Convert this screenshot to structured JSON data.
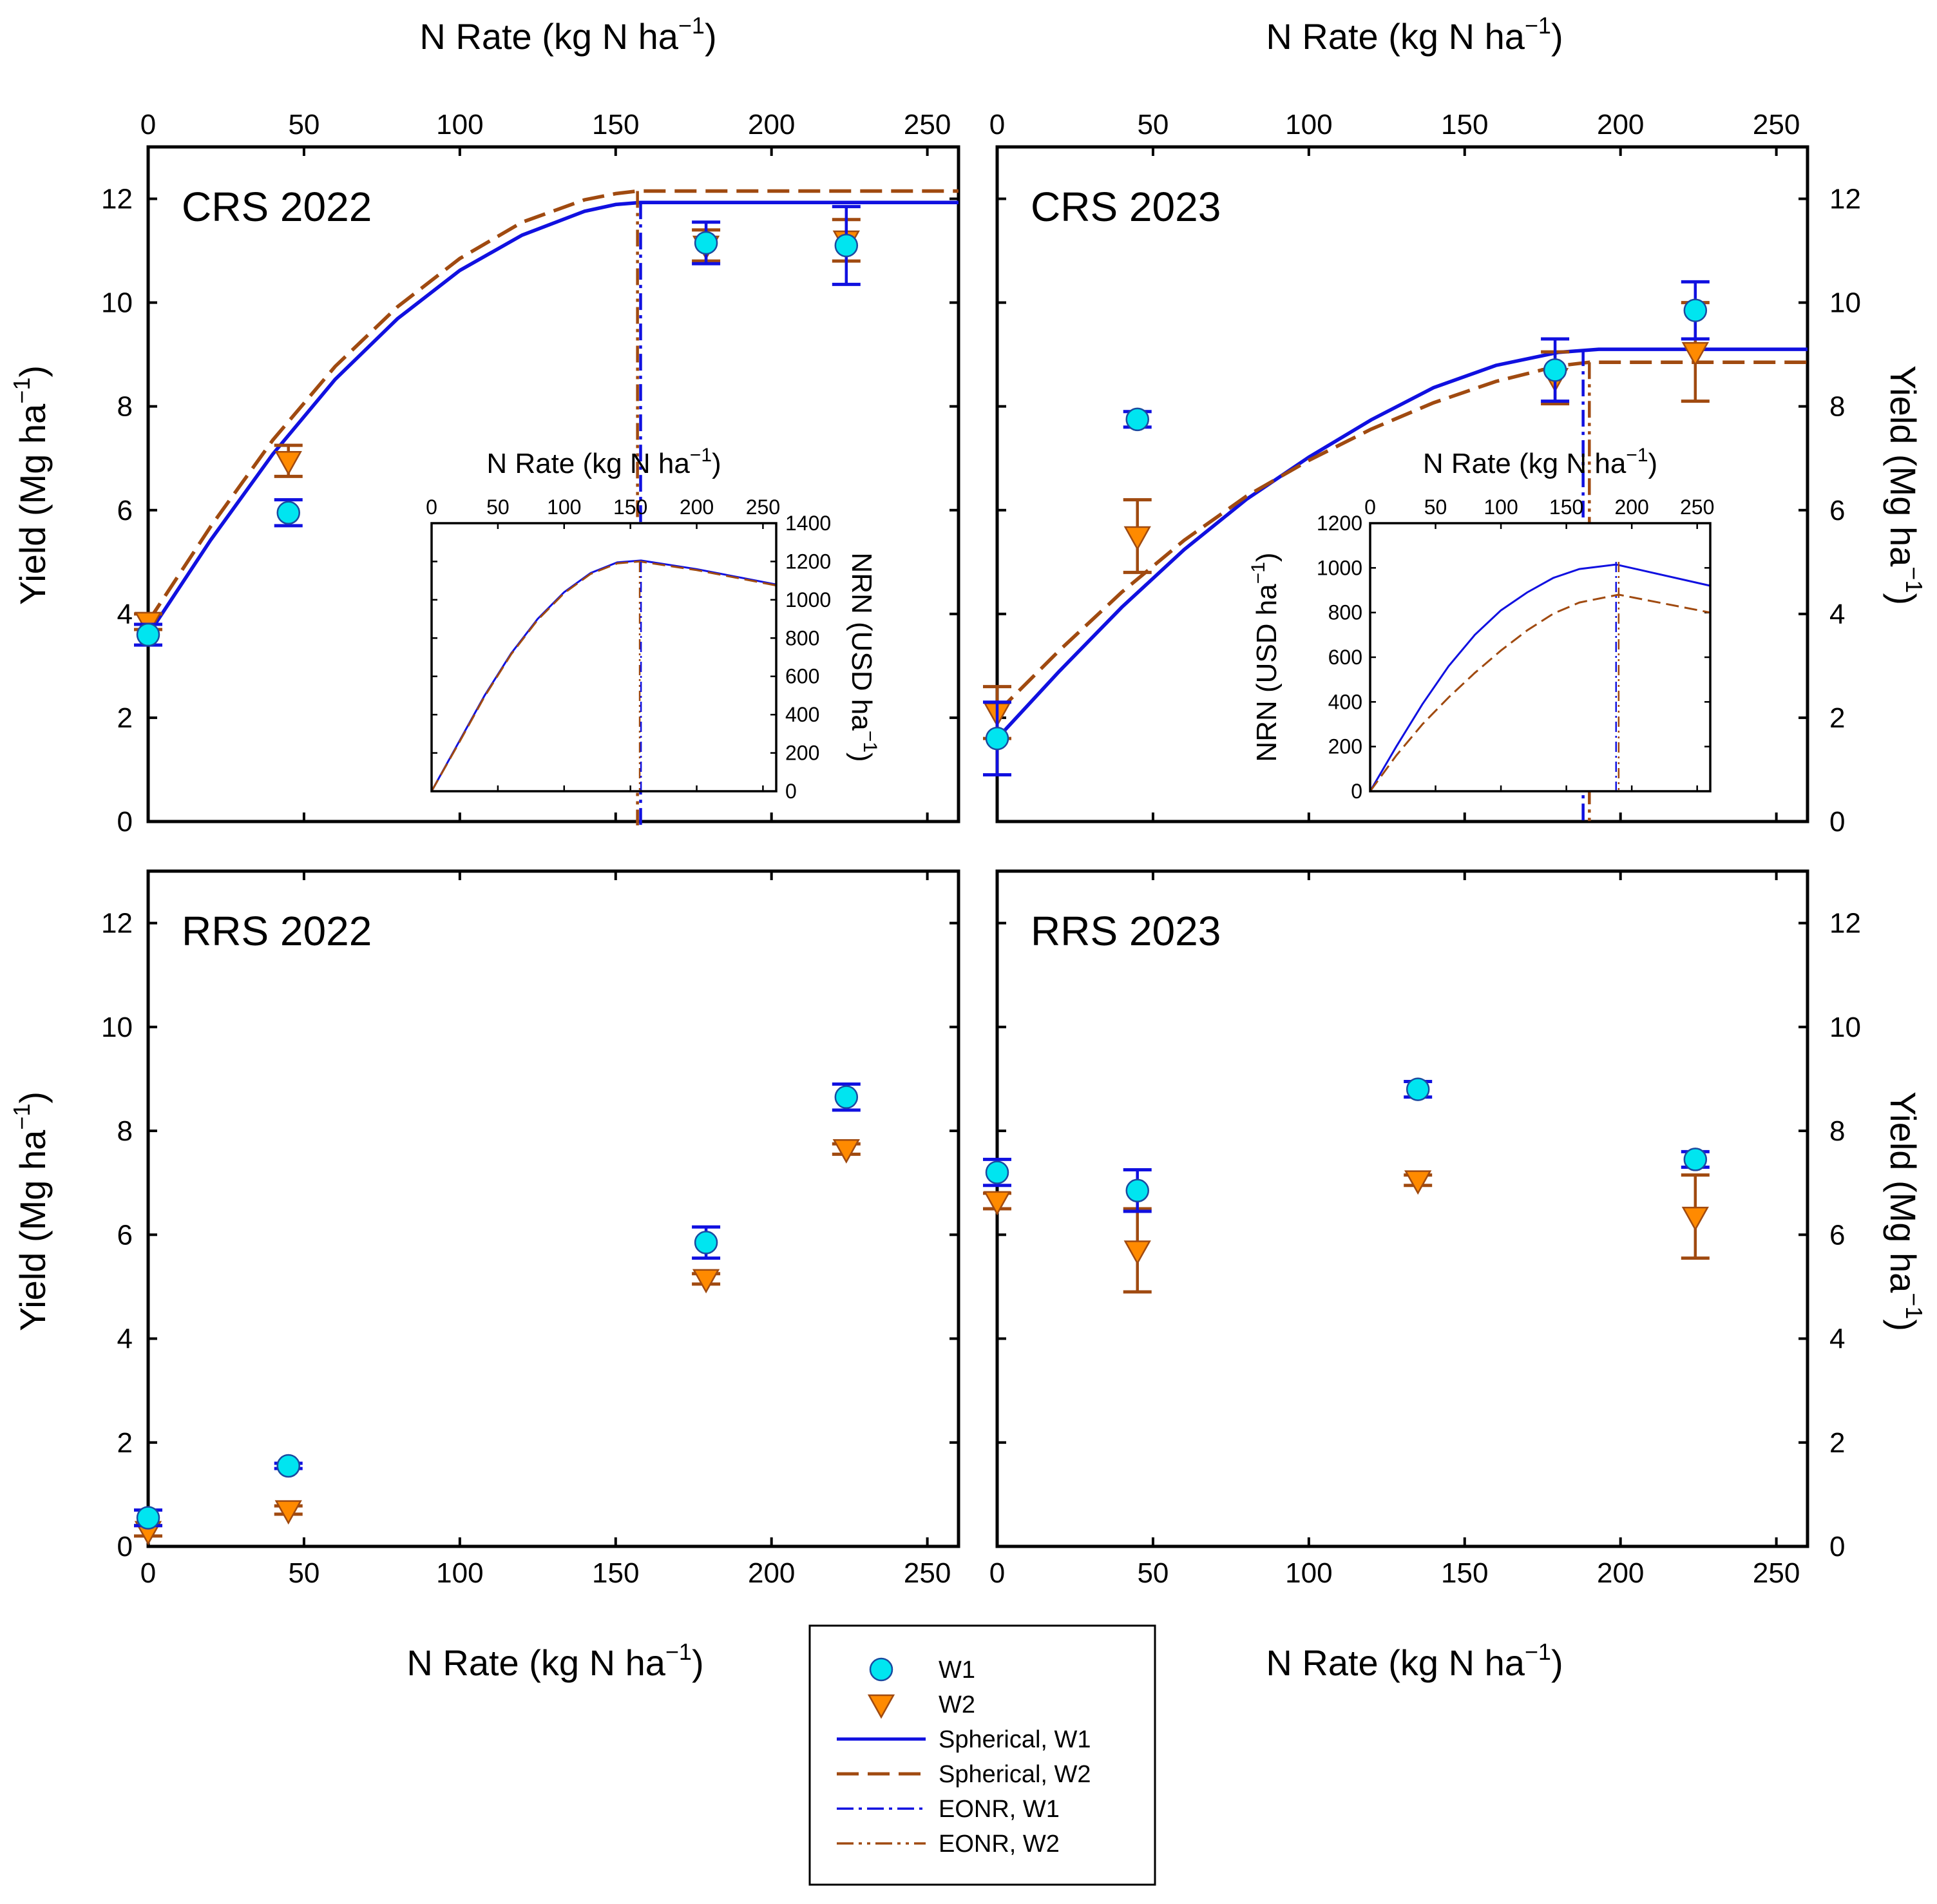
{
  "figure": {
    "x_axis_label": "N Rate (kg N ha",
    "x_axis_sup": "−1",
    "x_axis_close": ")",
    "y_axis_label": "Yield (Mg ha",
    "y_axis_sup": "−1",
    "y_axis_close": ")",
    "inset_y_label": "NRN (USD ha",
    "inset_y_sup": "−1",
    "inset_y_close": ")"
  },
  "colors": {
    "w1_marker_fill": "#00e5f0",
    "w1_line": "#1010e0",
    "w2_marker_fill": "#ff8a00",
    "w2_line": "#a04a10"
  },
  "legend": {
    "items": [
      {
        "label": "W1",
        "kind": "circle"
      },
      {
        "label": "W2",
        "kind": "triangle"
      },
      {
        "label": "Spherical, W1",
        "kind": "solid"
      },
      {
        "label": "Spherical, W2",
        "kind": "dashed"
      },
      {
        "label": "EONR, W1",
        "kind": "dashdot"
      },
      {
        "label": "EONR, W2",
        "kind": "dashdotdot"
      }
    ]
  },
  "chart_data": [
    {
      "type": "scatter",
      "title": "CRS 2022",
      "xlim": [
        0,
        260
      ],
      "ylim": [
        0,
        13
      ],
      "x_ticks": [
        0,
        50,
        100,
        150,
        200,
        250
      ],
      "y_ticks": [
        0,
        2,
        4,
        6,
        8,
        10,
        12
      ],
      "series": [
        {
          "name": "W1",
          "x": [
            0,
            45,
            179,
            224
          ],
          "y": [
            3.6,
            5.95,
            11.15,
            11.1
          ],
          "err": [
            0.2,
            0.25,
            0.4,
            0.75
          ]
        },
        {
          "name": "W2",
          "x": [
            0,
            45,
            179,
            224
          ],
          "y": [
            3.85,
            6.95,
            11.1,
            11.2
          ],
          "err": [
            0.15,
            0.3,
            0.3,
            0.4
          ]
        }
      ],
      "curves": [
        {
          "name": "Spherical, W1",
          "x": [
            0,
            20,
            40,
            60,
            80,
            100,
            120,
            140,
            150,
            158,
            260
          ],
          "y": [
            3.6,
            5.42,
            7.08,
            8.52,
            9.69,
            10.62,
            11.3,
            11.76,
            11.89,
            11.93,
            11.93
          ]
        },
        {
          "name": "Spherical, W2",
          "x": [
            0,
            20,
            40,
            60,
            80,
            100,
            120,
            140,
            150,
            157,
            260
          ],
          "y": [
            3.85,
            5.68,
            7.35,
            8.77,
            9.92,
            10.85,
            11.55,
            11.98,
            12.1,
            12.15,
            12.15
          ]
        }
      ],
      "eonr": {
        "w1": 158,
        "w2": 157
      },
      "inset": {
        "xlim": [
          0,
          260
        ],
        "ylim": [
          0,
          1400
        ],
        "x_ticks": [
          0,
          50,
          100,
          150,
          200,
          250
        ],
        "y_ticks": [
          0,
          200,
          400,
          600,
          800,
          1000,
          1200,
          1400
        ],
        "curves": [
          {
            "name": "Spherical, W1",
            "x": [
              0,
              20,
              40,
              60,
              80,
              100,
              120,
              140,
              158,
              200,
              260
            ],
            "y": [
              0,
              250,
              500,
              720,
              900,
              1040,
              1140,
              1195,
              1205,
              1160,
              1080
            ]
          },
          {
            "name": "Spherical, W2",
            "x": [
              0,
              20,
              40,
              60,
              80,
              100,
              120,
              140,
              157,
              200,
              260
            ],
            "y": [
              0,
              245,
              495,
              715,
              895,
              1035,
              1135,
              1190,
              1200,
              1155,
              1075
            ]
          }
        ],
        "eonr": {
          "w1": 158,
          "w2": 157
        }
      }
    },
    {
      "type": "scatter",
      "title": "CRS 2023",
      "xlim": [
        0,
        260
      ],
      "ylim": [
        0,
        13
      ],
      "x_ticks": [
        0,
        50,
        100,
        150,
        200,
        250
      ],
      "y_ticks": [
        0,
        2,
        4,
        6,
        8,
        10,
        12
      ],
      "series": [
        {
          "name": "W1",
          "x": [
            0,
            45,
            179,
            224
          ],
          "y": [
            1.6,
            7.75,
            8.7,
            9.85
          ],
          "err": [
            0.7,
            0.15,
            0.6,
            0.55
          ]
        },
        {
          "name": "W2",
          "x": [
            0,
            45,
            179,
            224
          ],
          "y": [
            2.1,
            5.5,
            8.55,
            9.05
          ],
          "err": [
            0.5,
            0.7,
            0.5,
            0.95
          ]
        }
      ],
      "curves": [
        {
          "name": "Spherical, W1",
          "x": [
            0,
            20,
            40,
            60,
            80,
            100,
            120,
            140,
            160,
            180,
            193,
            260
          ],
          "y": [
            1.6,
            2.9,
            4.13,
            5.24,
            6.21,
            7.02,
            7.74,
            8.36,
            8.79,
            9.04,
            9.1,
            9.1
          ]
        },
        {
          "name": "Spherical, W2",
          "x": [
            0,
            20,
            40,
            60,
            80,
            100,
            120,
            140,
            160,
            180,
            190,
            260
          ],
          "y": [
            2.1,
            3.3,
            4.42,
            5.42,
            6.27,
            6.96,
            7.56,
            8.07,
            8.48,
            8.78,
            8.85,
            8.85
          ]
        }
      ],
      "eonr": {
        "w1": 188,
        "w2": 190
      },
      "inset": {
        "xlim": [
          0,
          260
        ],
        "ylim": [
          0,
          1200
        ],
        "x_ticks": [
          0,
          50,
          100,
          150,
          200,
          250
        ],
        "y_ticks": [
          0,
          200,
          400,
          600,
          800,
          1000,
          1200
        ],
        "curves": [
          {
            "name": "Spherical, W1",
            "x": [
              0,
              20,
              40,
              60,
              80,
              100,
              120,
              140,
              160,
              188,
              260
            ],
            "y": [
              0,
              200,
              390,
              560,
              700,
              810,
              890,
              955,
              995,
              1015,
              920
            ]
          },
          {
            "name": "Spherical, W2",
            "x": [
              0,
              20,
              40,
              60,
              80,
              100,
              120,
              140,
              160,
              190,
              260
            ],
            "y": [
              0,
              160,
              300,
              420,
              530,
              630,
              720,
              795,
              845,
              880,
              800
            ]
          }
        ],
        "eonr": {
          "w1": 188,
          "w2": 190
        }
      }
    },
    {
      "type": "scatter",
      "title": "RRS 2022",
      "xlim": [
        0,
        260
      ],
      "ylim": [
        0,
        13
      ],
      "x_ticks": [
        0,
        50,
        100,
        150,
        200,
        250
      ],
      "y_ticks": [
        0,
        2,
        4,
        6,
        8,
        10,
        12
      ],
      "series": [
        {
          "name": "W1",
          "x": [
            0,
            45,
            179,
            224
          ],
          "y": [
            0.55,
            1.55,
            5.85,
            8.65
          ],
          "err": [
            0.15,
            0.05,
            0.3,
            0.25
          ]
        },
        {
          "name": "W2",
          "x": [
            0,
            45,
            179,
            224
          ],
          "y": [
            0.3,
            0.7,
            5.15,
            7.65
          ],
          "err": [
            0.1,
            0.08,
            0.1,
            0.1
          ]
        }
      ]
    },
    {
      "type": "scatter",
      "title": "RRS 2023",
      "xlim": [
        0,
        260
      ],
      "ylim": [
        0,
        13
      ],
      "x_ticks": [
        0,
        50,
        100,
        150,
        200,
        250
      ],
      "y_ticks": [
        0,
        2,
        4,
        6,
        8,
        10,
        12
      ],
      "series": [
        {
          "name": "W1",
          "x": [
            0,
            45,
            135,
            224
          ],
          "y": [
            7.2,
            6.85,
            8.8,
            7.45
          ],
          "err": [
            0.25,
            0.4,
            0.15,
            0.15
          ]
        },
        {
          "name": "W2",
          "x": [
            0,
            45,
            135,
            224
          ],
          "y": [
            6.65,
            5.7,
            7.05,
            6.35
          ],
          "err": [
            0.15,
            0.8,
            0.1,
            0.8
          ]
        }
      ]
    }
  ]
}
